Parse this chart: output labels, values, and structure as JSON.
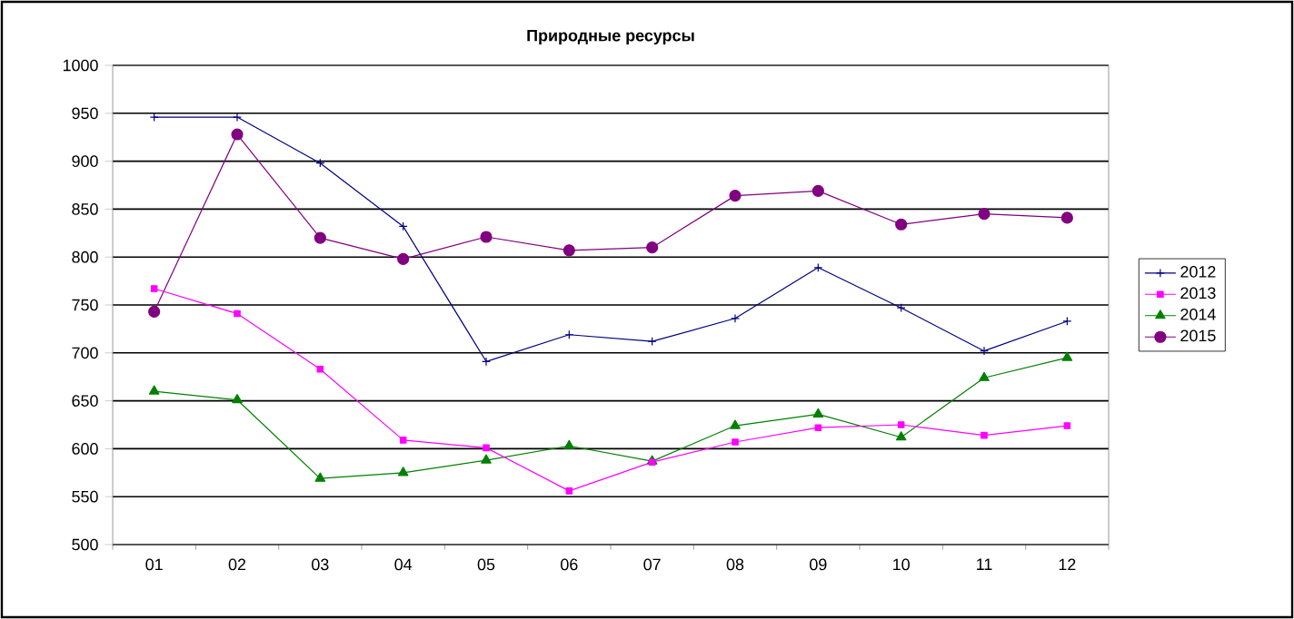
{
  "chart_data": {
    "type": "line",
    "title": "Природные ресурсы",
    "categories": [
      "01",
      "02",
      "03",
      "04",
      "05",
      "06",
      "07",
      "08",
      "09",
      "10",
      "11",
      "12"
    ],
    "series": [
      {
        "name": "2012",
        "color": "#000080",
        "marker": "cross",
        "values": [
          946,
          946,
          898,
          832,
          691,
          719,
          712,
          736,
          789,
          747,
          702,
          733
        ]
      },
      {
        "name": "2013",
        "color": "#ff00ff",
        "marker": "square",
        "values": [
          767,
          741,
          683,
          609,
          601,
          556,
          586,
          607,
          622,
          625,
          614,
          624
        ]
      },
      {
        "name": "2014",
        "color": "#008000",
        "marker": "triangle",
        "values": [
          660,
          651,
          569,
          575,
          588,
          603,
          587,
          624,
          636,
          612,
          674,
          695
        ]
      },
      {
        "name": "2015",
        "color": "#800080",
        "marker": "circle",
        "values": [
          743,
          928,
          820,
          798,
          821,
          807,
          810,
          864,
          869,
          834,
          845,
          841
        ]
      }
    ],
    "ylim": [
      500,
      1000
    ],
    "yticks": [
      500,
      550,
      600,
      650,
      700,
      750,
      800,
      850,
      900,
      950,
      1000
    ],
    "grid": "y",
    "legend": "right",
    "line_style": "solid"
  }
}
